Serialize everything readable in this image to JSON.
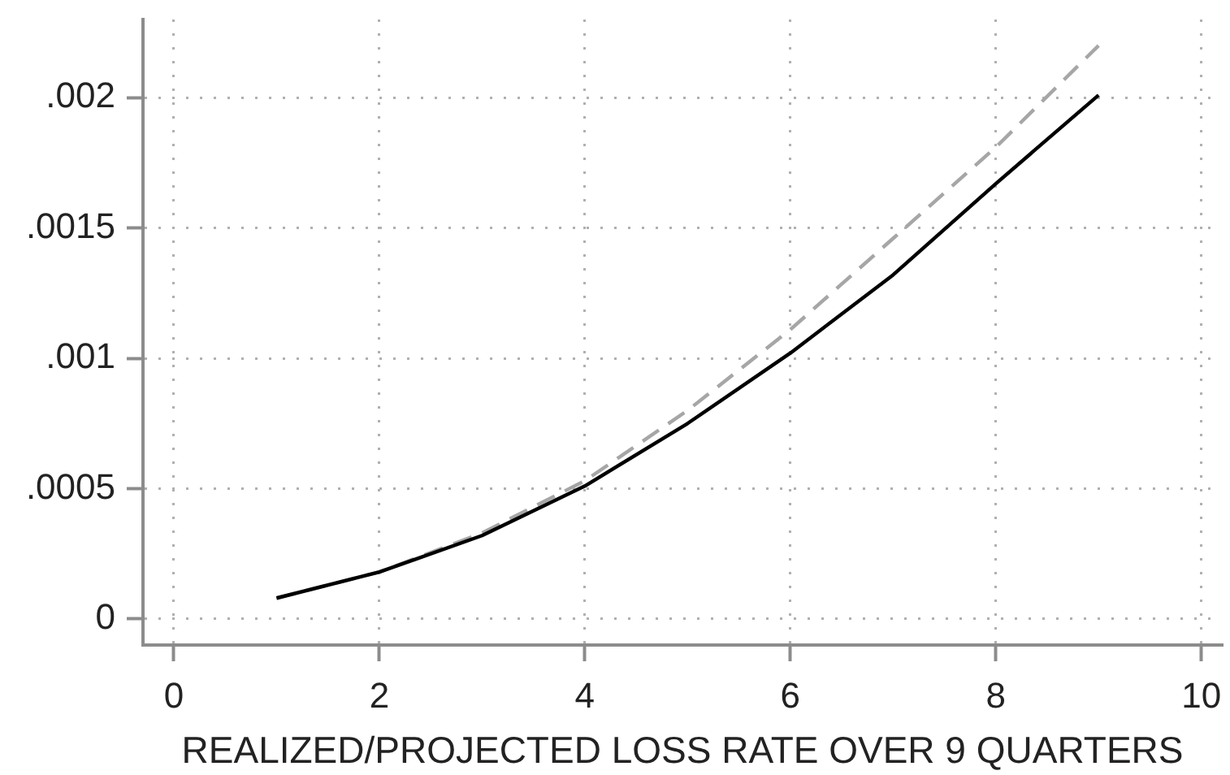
{
  "chart_data": {
    "type": "line",
    "xlabel": "REALIZED/PROJECTED LOSS RATE OVER 9 QUARTERS",
    "x": [
      1,
      2,
      3,
      4,
      5,
      6,
      7,
      8,
      9
    ],
    "series": [
      {
        "color": "#000000",
        "line_style": "solid",
        "values": [
          8e-05,
          0.00018,
          0.00032,
          0.00051,
          0.00075,
          0.00102,
          0.00132,
          0.00167,
          0.00201
        ]
      },
      {
        "color": "#a6a6a6",
        "line_style": "dashed",
        "values": [
          8e-05,
          0.00018,
          0.00033,
          0.00053,
          0.0008,
          0.00111,
          0.00146,
          0.00181,
          0.0022
        ]
      }
    ],
    "xlim": [
      -0.3,
      10.2
    ],
    "ylim": [
      -0.0001,
      0.0023
    ],
    "xticks": [
      0,
      2,
      4,
      6,
      8,
      10
    ],
    "yticks": [
      0,
      {
        "value": 0.0005,
        "label": ".0005"
      },
      {
        "value": 0.001,
        "label": ".001"
      },
      {
        "value": 0.0015,
        "label": ".0015"
      },
      {
        "value": 0.002,
        "label": ".002"
      }
    ],
    "grid": true,
    "marker": "none"
  }
}
